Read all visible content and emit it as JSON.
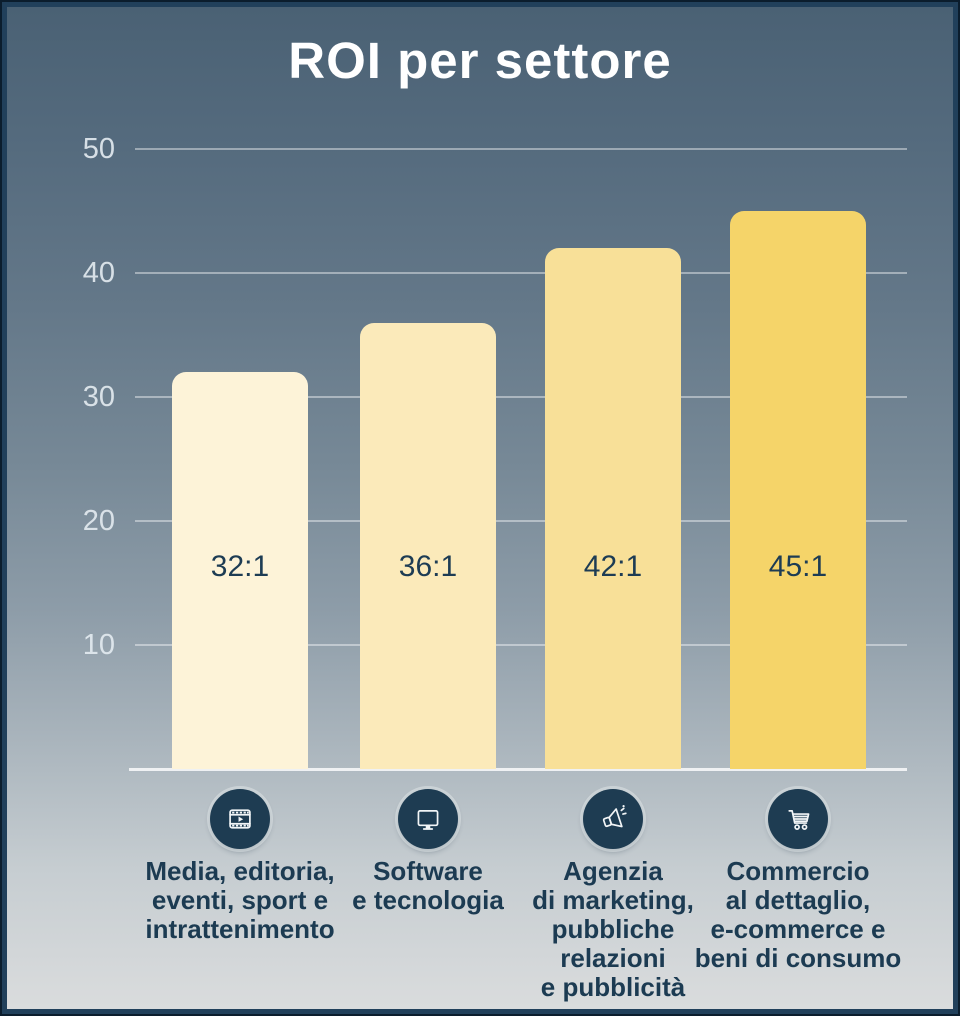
{
  "title": "ROI per settore",
  "chart_data": {
    "type": "bar",
    "title": "ROI per settore",
    "categories": [
      "Media, editoria, eventi, sport e intrattenimento",
      "Software e tecnologia",
      "Agenzia di marketing, pubbliche relazioni e pubblicità",
      "Commercio al dettaglio, e-commerce e beni di consumo"
    ],
    "category_lines": [
      [
        "Media, editoria,",
        "eventi, sport e",
        "intrattenimento"
      ],
      [
        "Software",
        "e tecnologia"
      ],
      [
        "Agenzia",
        "di marketing,",
        "pubbliche",
        "relazioni",
        "e pubblicità"
      ],
      [
        "Commercio",
        "al dettaglio,",
        "e-commerce e",
        "beni di consumo"
      ]
    ],
    "values": [
      32,
      36,
      42,
      45
    ],
    "value_labels": [
      "32:1",
      "36:1",
      "42:1",
      "45:1"
    ],
    "yticks": [
      10,
      20,
      30,
      40,
      50
    ],
    "ylim": [
      0,
      52
    ],
    "grid": true,
    "legend": false,
    "icons": [
      "video-player-icon",
      "monitor-icon",
      "megaphone-icon",
      "shopping-cart-icon"
    ],
    "bar_colors": [
      "#fdf3d8",
      "#fbeaba",
      "#f8e098",
      "#f5d469"
    ]
  },
  "colors": {
    "background_top": "#4a6174",
    "background_bottom": "#dadcdd",
    "frame": "#21405b",
    "frame_outer": "#0b1d2d",
    "title_text": "#ffffff",
    "tick_text": "#e2e9ef",
    "value_text": "#1d3c54",
    "category_text": "#1c3b52",
    "icon_circle": "#1e3c52",
    "icon_glyph": "#f2f5f7",
    "gridline": "rgba(255,255,255,0.42)"
  }
}
